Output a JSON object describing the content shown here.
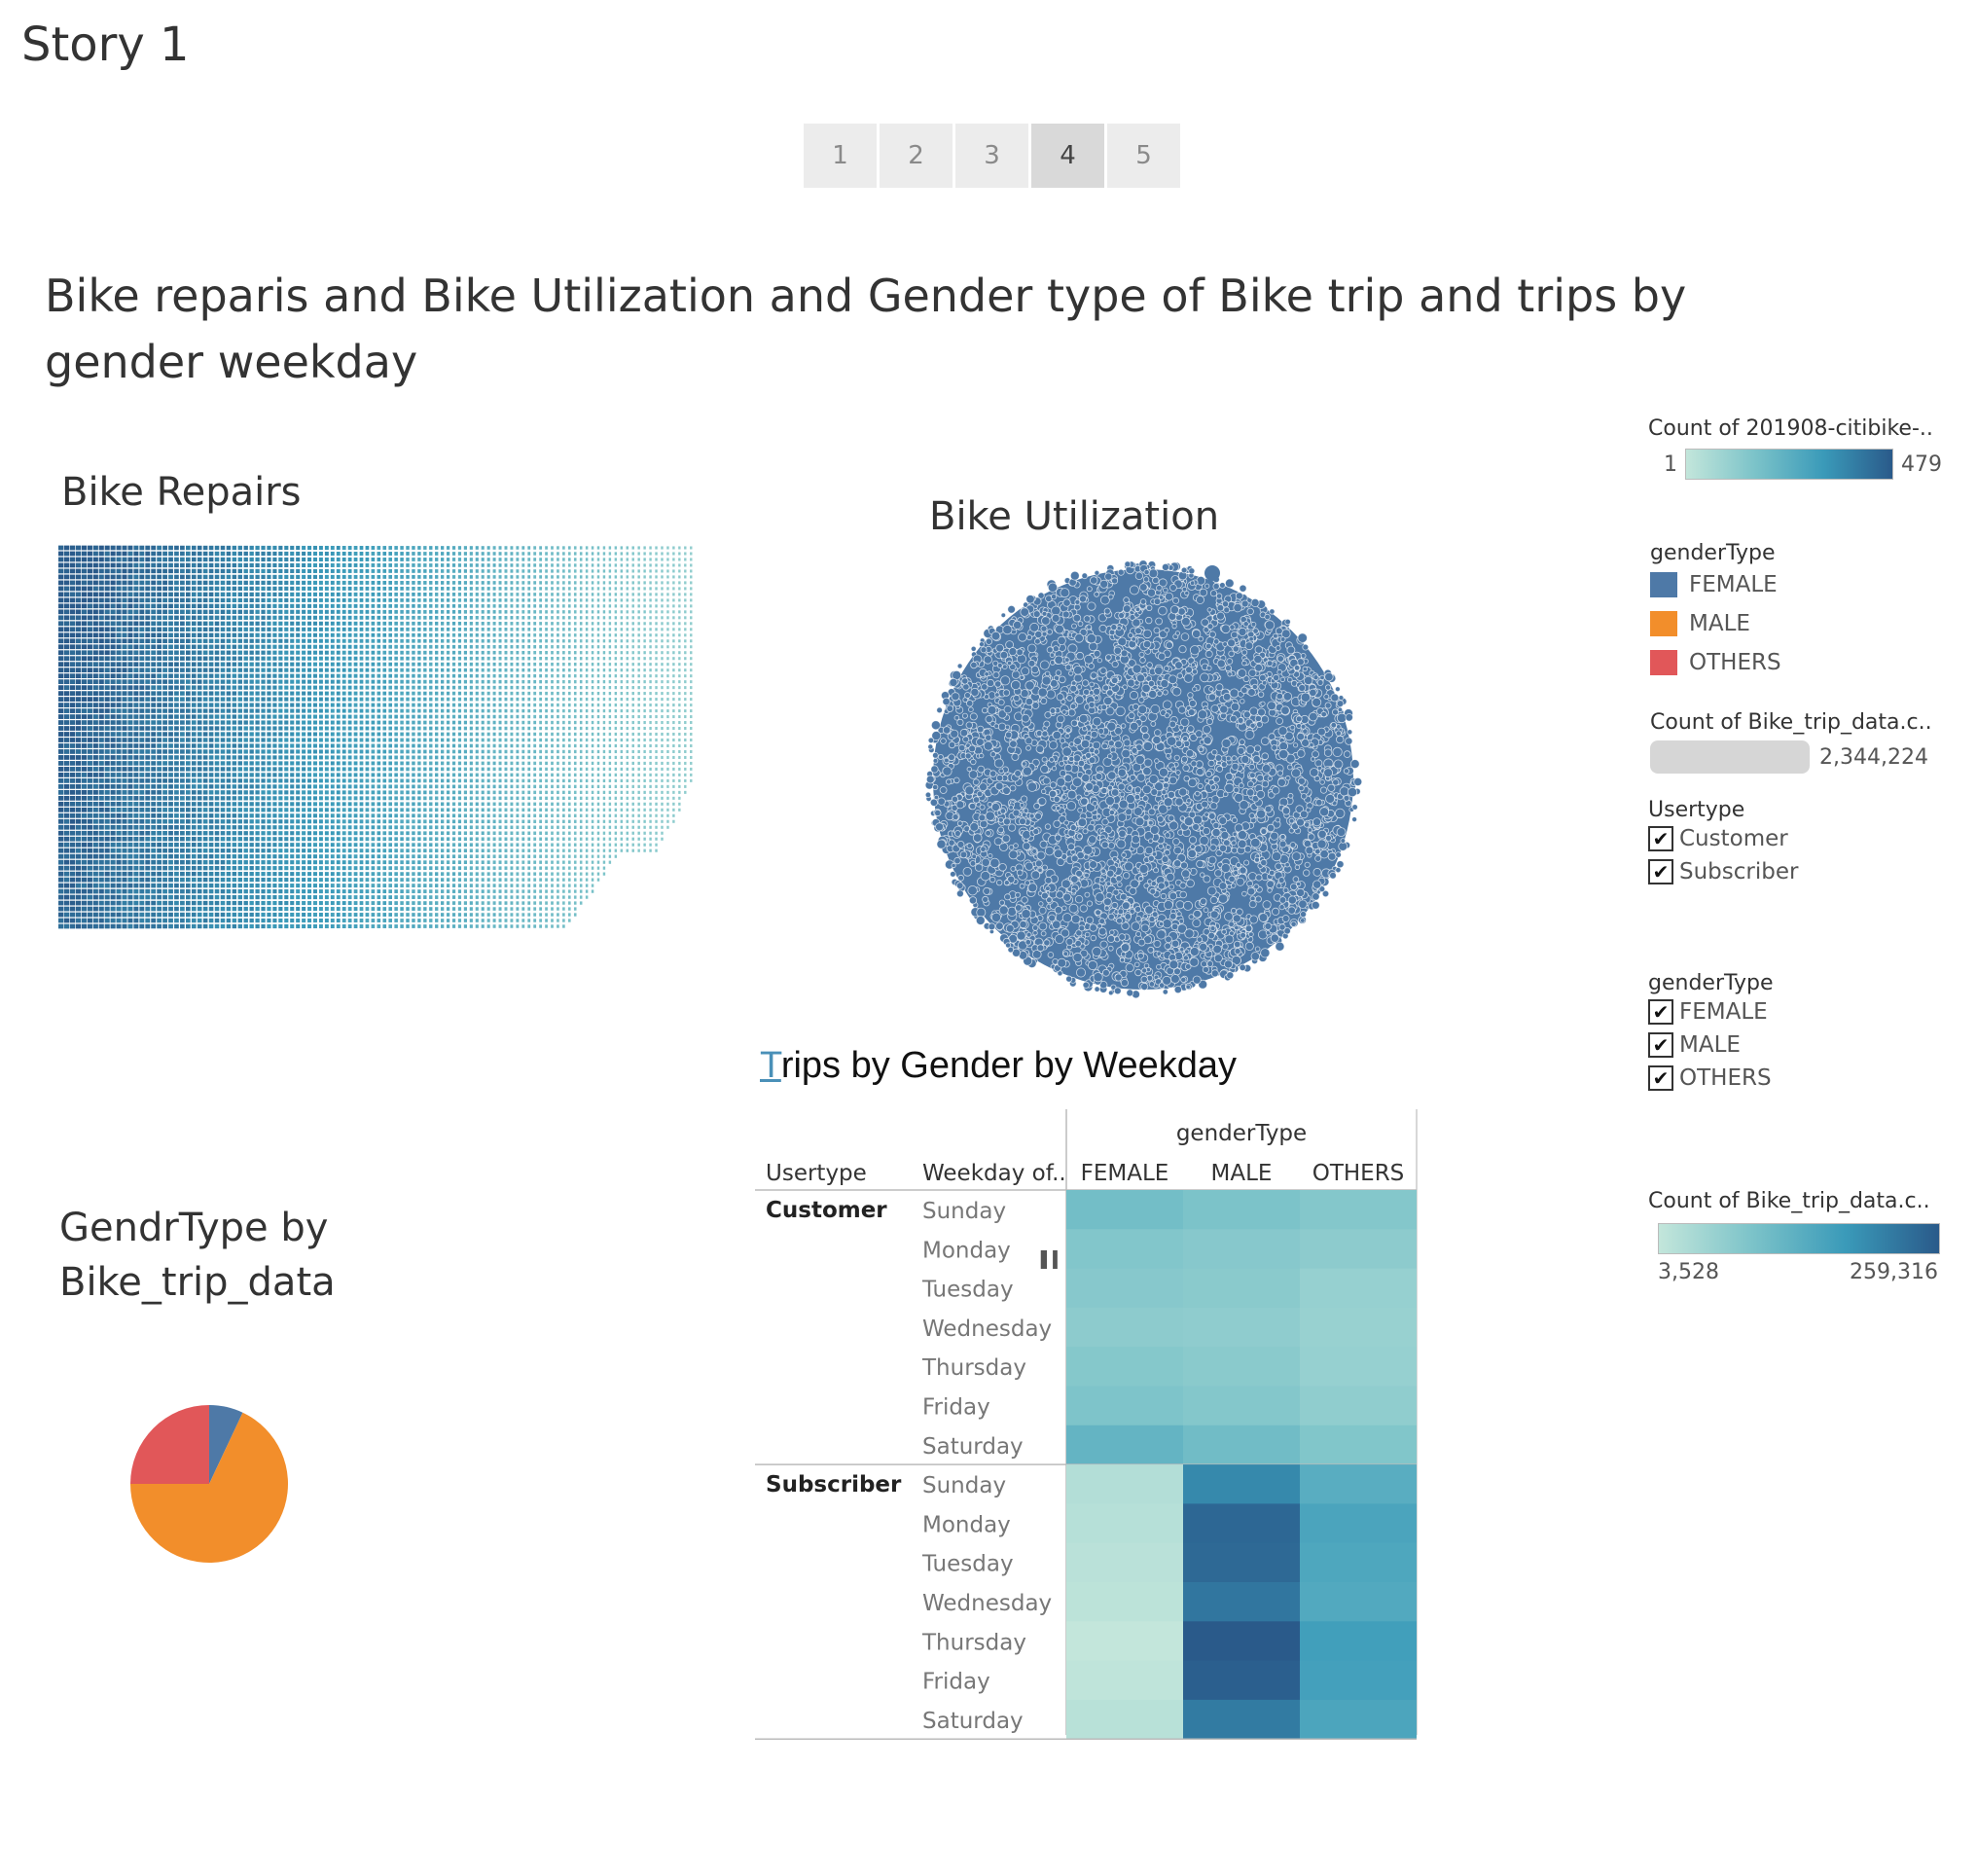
{
  "story": {
    "title": "Story 1",
    "nav": [
      "1",
      "2",
      "3",
      "4",
      "5"
    ],
    "active_index": 3
  },
  "dashboard_title": "Bike reparis and Bike Utilization  and Gender type of Bike trip and trips by gender weekday",
  "sheets": {
    "repairs_title": "Bike Repairs",
    "utilization_title": "Bike Utilization",
    "gender_title_line1": "GendrType by",
    "gender_title_line2": "Bike_trip_data",
    "trips_title_first": "T",
    "trips_title_rest": "rips by Gender by Weekday"
  },
  "legends": {
    "count_citibike": {
      "title": "Count of 201908-citibike-..",
      "min": "1",
      "max": "479",
      "color_low": "#b9e3d8",
      "color_high": "#2a5a8a"
    },
    "gender_color": {
      "title": "genderType",
      "items": [
        {
          "label": "FEMALE",
          "color": "#4e79a7"
        },
        {
          "label": "MALE",
          "color": "#f28e2b"
        },
        {
          "label": "OTHERS",
          "color": "#e15759"
        }
      ]
    },
    "count_size": {
      "title": "Count of Bike_trip_data.c..",
      "value": "2,344,224"
    },
    "usertype_filter": {
      "title": "Usertype",
      "items": [
        "Customer",
        "Subscriber"
      ]
    },
    "gender_filter": {
      "title": "genderType",
      "items": [
        "FEMALE",
        "MALE",
        "OTHERS"
      ]
    },
    "count_heat": {
      "title": "Count of Bike_trip_data.c..",
      "min": "3,528",
      "max": "259,316",
      "color_low": "#b9e3d8",
      "color_high": "#2a5a8a"
    }
  },
  "chart_data": [
    {
      "type": "pie",
      "title": "GendrType by Bike_trip_data",
      "categories": [
        "FEMALE",
        "MALE",
        "OTHERS"
      ],
      "values": [
        0.07,
        0.68,
        0.25
      ],
      "colors": [
        "#4e79a7",
        "#f28e2b",
        "#e15759"
      ]
    },
    {
      "type": "heatmap",
      "title": "Trips by Gender by Weekday",
      "column_header": "genderType",
      "row_header_1": "Usertype",
      "row_header_2": "Weekday of..",
      "columns": [
        "FEMALE",
        "MALE",
        "OTHERS"
      ],
      "row_groups": [
        {
          "name": "Customer",
          "rows": [
            "Sunday",
            "Monday",
            "Tuesday",
            "Wednesday",
            "Thursday",
            "Friday",
            "Saturday"
          ],
          "values": [
            [
              40000,
              32000,
              26000
            ],
            [
              27000,
              24000,
              20000
            ],
            [
              24000,
              22000,
              15000
            ],
            [
              20000,
              19000,
              14000
            ],
            [
              25000,
              22000,
              15000
            ],
            [
              30000,
              26000,
              18000
            ],
            [
              56000,
              42000,
              28000
            ]
          ]
        },
        {
          "name": "Subscriber",
          "rows": [
            "Sunday",
            "Monday",
            "Tuesday",
            "Wednesday",
            "Thursday",
            "Friday",
            "Saturday"
          ],
          "values": [
            [
              5000,
              150000,
              70000
            ],
            [
              4500,
              225000,
              90000
            ],
            [
              4000,
              220000,
              85000
            ],
            [
              3800,
              190000,
              80000
            ],
            [
              3528,
              259316,
              105000
            ],
            [
              3600,
              245000,
              100000
            ],
            [
              4200,
              180000,
              88000
            ]
          ]
        }
      ],
      "color_range": [
        3528,
        259316
      ]
    },
    {
      "type": "heatmap",
      "title": "Bike Repairs",
      "color_range": [
        1,
        479
      ]
    },
    {
      "type": "scatter",
      "title": "Bike Utilization",
      "total": "2,344,224"
    }
  ]
}
